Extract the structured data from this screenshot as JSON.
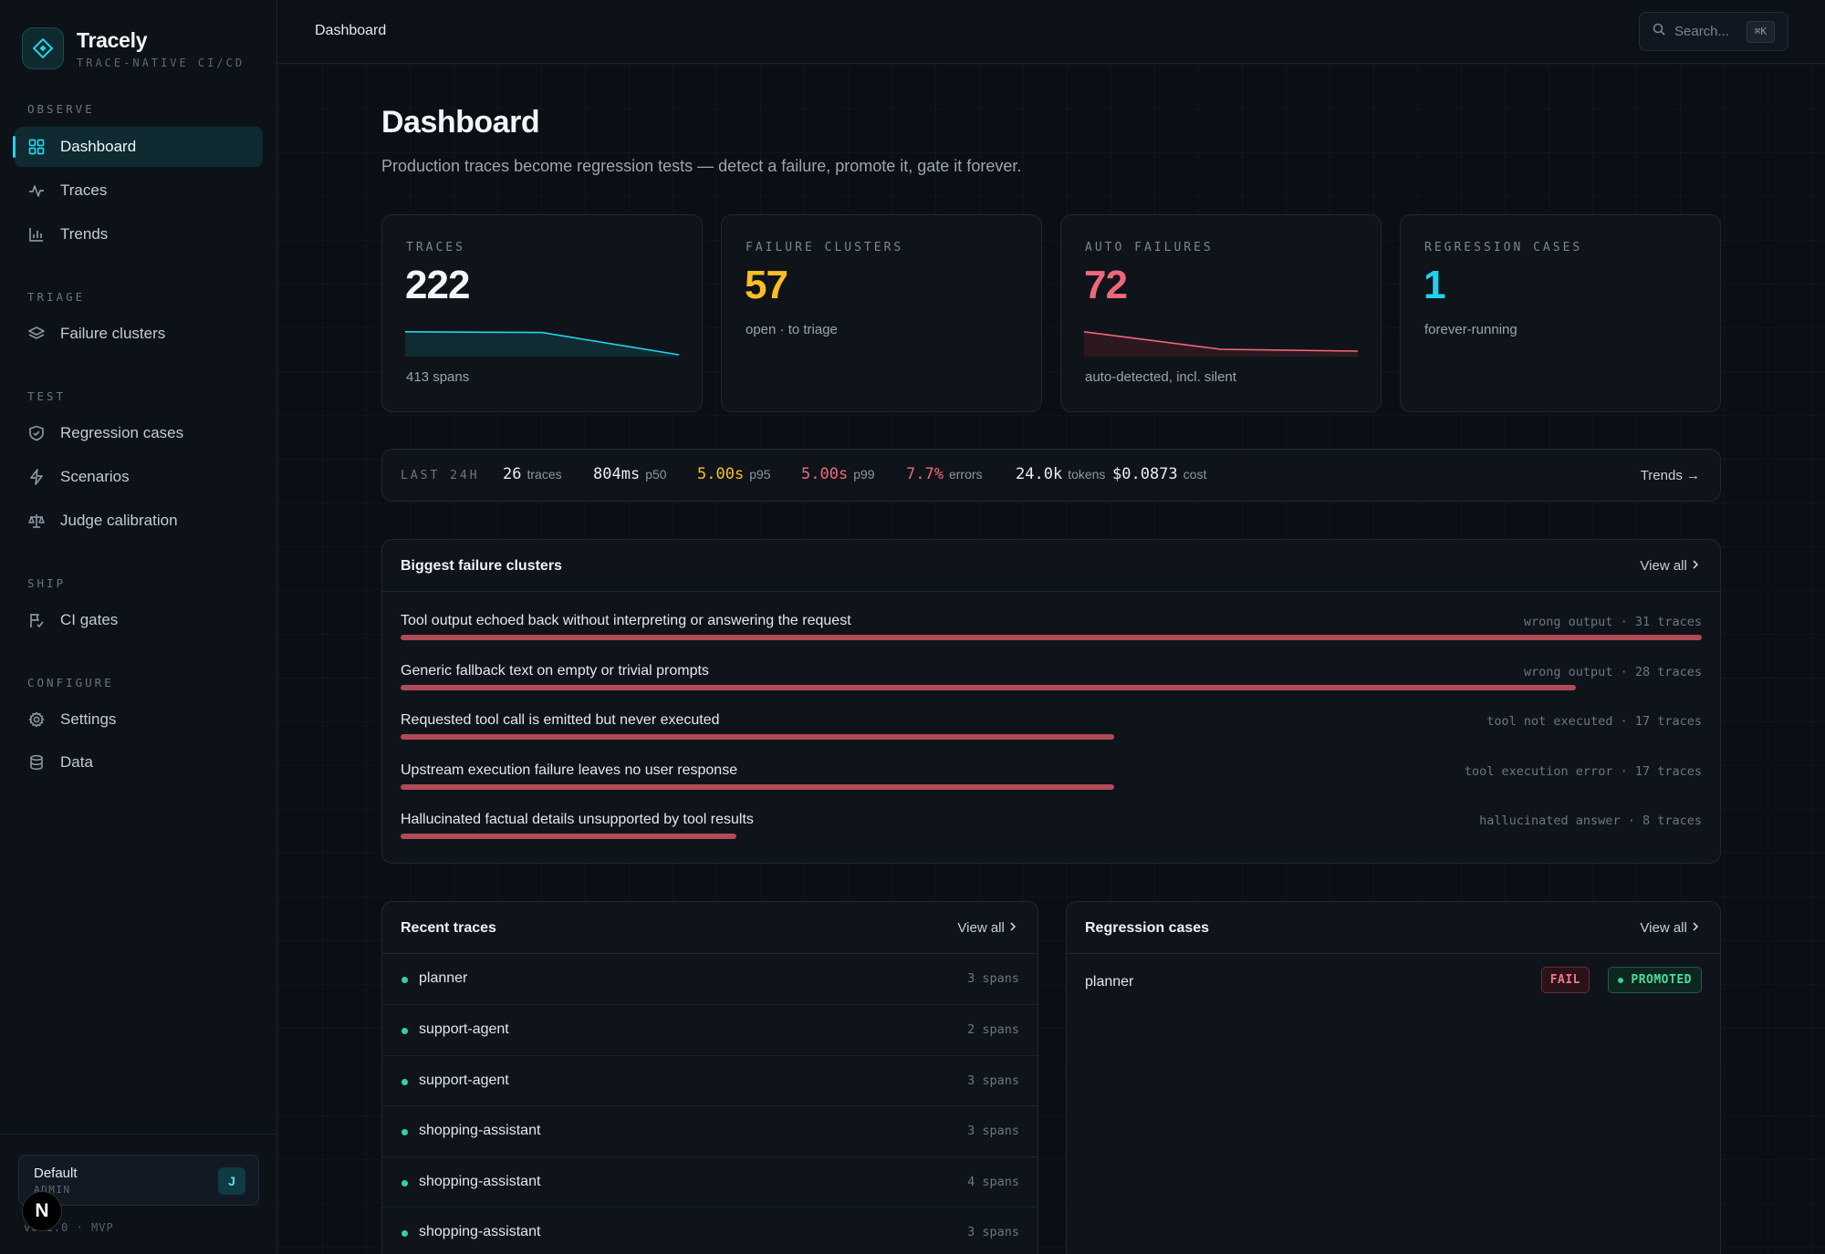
{
  "brand": {
    "name": "Tracely",
    "tagline": "TRACE-NATIVE CI/CD"
  },
  "nav": {
    "sections": {
      "observe": "OBSERVE",
      "triage": "TRIAGE",
      "test": "TEST",
      "ship": "SHIP",
      "configure": "CONFIGURE"
    },
    "items": {
      "dashboard": "Dashboard",
      "traces": "Traces",
      "trends": "Trends",
      "failure_clusters": "Failure clusters",
      "regression_cases": "Regression cases",
      "scenarios": "Scenarios",
      "judge_calibration": "Judge calibration",
      "ci_gates": "CI gates",
      "settings": "Settings",
      "data": "Data"
    },
    "active": "dashboard"
  },
  "workspace": {
    "name": "Default",
    "role": "ADMIN",
    "avatar": "J"
  },
  "version": "v0.1.0 · MVP",
  "n_badge": "N",
  "topbar": {
    "breadcrumb": "Dashboard",
    "search_placeholder": "Search...",
    "search_shortcut": "⌘K"
  },
  "page": {
    "title": "Dashboard",
    "subtitle": "Production traces become regression tests — detect a failure, promote it, gate it forever."
  },
  "stats": {
    "traces": {
      "label": "TRACES",
      "value": "222",
      "foot": "413 spans",
      "sparkline": [
        0.68,
        0.66,
        0.05
      ]
    },
    "clusters": {
      "label": "FAILURE CLUSTERS",
      "value": "57",
      "foot": "open · to triage"
    },
    "auto_failures": {
      "label": "AUTO FAILURES",
      "value": "72",
      "foot": "auto-detected, incl. silent",
      "sparkline": [
        0.68,
        0.2,
        0.15
      ]
    },
    "regression": {
      "label": "REGRESSION CASES",
      "value": "1",
      "foot": "forever-running"
    }
  },
  "last24": {
    "label": "LAST 24H",
    "traces": {
      "value": "26",
      "unit": "traces"
    },
    "p50": {
      "value": "804ms",
      "unit": "p50"
    },
    "p95": {
      "value": "5.00s",
      "unit": "p95"
    },
    "p99": {
      "value": "5.00s",
      "unit": "p99"
    },
    "errors": {
      "value": "7.7%",
      "unit": "errors"
    },
    "tokens": {
      "value": "24.0k",
      "unit": "tokens"
    },
    "cost": {
      "value": "$0.0873",
      "unit": "cost"
    },
    "link": "Trends →"
  },
  "failure_clusters": {
    "title": "Biggest failure clusters",
    "view_all": "View all",
    "max_traces": 31,
    "rows": [
      {
        "title": "Tool output echoed back without interpreting or answering the request",
        "kind": "wrong output",
        "count_text": "31 traces",
        "count": 31
      },
      {
        "title": "Generic fallback text on empty or trivial prompts",
        "kind": "wrong output",
        "count_text": "28 traces",
        "count": 28
      },
      {
        "title": "Requested tool call is emitted but never executed",
        "kind": "tool not executed",
        "count_text": "17 traces",
        "count": 17
      },
      {
        "title": "Upstream execution failure leaves no user response",
        "kind": "tool execution error",
        "count_text": "17 traces",
        "count": 17
      },
      {
        "title": "Hallucinated factual details unsupported by tool results",
        "kind": "hallucinated answer",
        "count_text": "8 traces",
        "count": 8
      }
    ]
  },
  "recent_traces": {
    "title": "Recent traces",
    "view_all": "View all",
    "rows": [
      {
        "name": "planner",
        "spans": "3 spans"
      },
      {
        "name": "support-agent",
        "spans": "2 spans"
      },
      {
        "name": "support-agent",
        "spans": "3 spans"
      },
      {
        "name": "shopping-assistant",
        "spans": "3 spans"
      },
      {
        "name": "shopping-assistant",
        "spans": "4 spans"
      },
      {
        "name": "shopping-assistant",
        "spans": "3 spans"
      }
    ]
  },
  "regression_cases": {
    "title": "Regression cases",
    "view_all": "View all",
    "rows": [
      {
        "name": "planner",
        "status": "FAIL",
        "state": "PROMOTED"
      }
    ]
  },
  "colors": {
    "accent": "#22d3ee",
    "traces_value": "#f3f6f9",
    "clusters_value": "#fbbf24",
    "failures_value": "#f0667c",
    "regression_value": "#22d3ee",
    "bar": "#b24a58"
  }
}
